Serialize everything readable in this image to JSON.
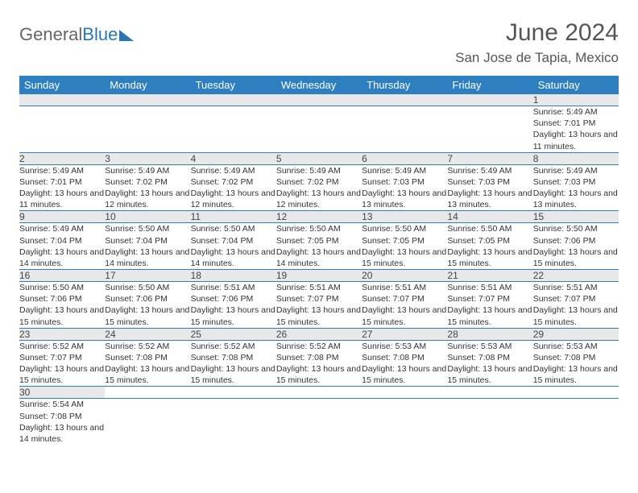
{
  "brand": {
    "part1": "General",
    "part2": "Blue"
  },
  "title": "June 2024",
  "location": "San Jose de Tapia, Mexico",
  "colors": {
    "header_bg": "#2d7fbf",
    "header_text": "#ffffff",
    "daynum_bg": "#e8e8e8",
    "row_divider": "#2d7fbf",
    "brand_blue": "#2878b8",
    "brand_gray": "#666666",
    "page_bg": "#ffffff"
  },
  "typography": {
    "title_fontsize": 30,
    "location_fontsize": 17,
    "dayhead_fontsize": 13,
    "cell_fontsize": 10.5
  },
  "day_headers": [
    "Sunday",
    "Monday",
    "Tuesday",
    "Wednesday",
    "Thursday",
    "Friday",
    "Saturday"
  ],
  "weeks": [
    [
      null,
      null,
      null,
      null,
      null,
      null,
      {
        "n": "1",
        "sunrise": "5:49 AM",
        "sunset": "7:01 PM",
        "daylight": "13 hours and 11 minutes."
      }
    ],
    [
      {
        "n": "2",
        "sunrise": "5:49 AM",
        "sunset": "7:01 PM",
        "daylight": "13 hours and 11 minutes."
      },
      {
        "n": "3",
        "sunrise": "5:49 AM",
        "sunset": "7:02 PM",
        "daylight": "13 hours and 12 minutes."
      },
      {
        "n": "4",
        "sunrise": "5:49 AM",
        "sunset": "7:02 PM",
        "daylight": "13 hours and 12 minutes."
      },
      {
        "n": "5",
        "sunrise": "5:49 AM",
        "sunset": "7:02 PM",
        "daylight": "13 hours and 12 minutes."
      },
      {
        "n": "6",
        "sunrise": "5:49 AM",
        "sunset": "7:03 PM",
        "daylight": "13 hours and 13 minutes."
      },
      {
        "n": "7",
        "sunrise": "5:49 AM",
        "sunset": "7:03 PM",
        "daylight": "13 hours and 13 minutes."
      },
      {
        "n": "8",
        "sunrise": "5:49 AM",
        "sunset": "7:03 PM",
        "daylight": "13 hours and 13 minutes."
      }
    ],
    [
      {
        "n": "9",
        "sunrise": "5:49 AM",
        "sunset": "7:04 PM",
        "daylight": "13 hours and 14 minutes."
      },
      {
        "n": "10",
        "sunrise": "5:50 AM",
        "sunset": "7:04 PM",
        "daylight": "13 hours and 14 minutes."
      },
      {
        "n": "11",
        "sunrise": "5:50 AM",
        "sunset": "7:04 PM",
        "daylight": "13 hours and 14 minutes."
      },
      {
        "n": "12",
        "sunrise": "5:50 AM",
        "sunset": "7:05 PM",
        "daylight": "13 hours and 14 minutes."
      },
      {
        "n": "13",
        "sunrise": "5:50 AM",
        "sunset": "7:05 PM",
        "daylight": "13 hours and 15 minutes."
      },
      {
        "n": "14",
        "sunrise": "5:50 AM",
        "sunset": "7:05 PM",
        "daylight": "13 hours and 15 minutes."
      },
      {
        "n": "15",
        "sunrise": "5:50 AM",
        "sunset": "7:06 PM",
        "daylight": "13 hours and 15 minutes."
      }
    ],
    [
      {
        "n": "16",
        "sunrise": "5:50 AM",
        "sunset": "7:06 PM",
        "daylight": "13 hours and 15 minutes."
      },
      {
        "n": "17",
        "sunrise": "5:50 AM",
        "sunset": "7:06 PM",
        "daylight": "13 hours and 15 minutes."
      },
      {
        "n": "18",
        "sunrise": "5:51 AM",
        "sunset": "7:06 PM",
        "daylight": "13 hours and 15 minutes."
      },
      {
        "n": "19",
        "sunrise": "5:51 AM",
        "sunset": "7:07 PM",
        "daylight": "13 hours and 15 minutes."
      },
      {
        "n": "20",
        "sunrise": "5:51 AM",
        "sunset": "7:07 PM",
        "daylight": "13 hours and 15 minutes."
      },
      {
        "n": "21",
        "sunrise": "5:51 AM",
        "sunset": "7:07 PM",
        "daylight": "13 hours and 15 minutes."
      },
      {
        "n": "22",
        "sunrise": "5:51 AM",
        "sunset": "7:07 PM",
        "daylight": "13 hours and 15 minutes."
      }
    ],
    [
      {
        "n": "23",
        "sunrise": "5:52 AM",
        "sunset": "7:07 PM",
        "daylight": "13 hours and 15 minutes."
      },
      {
        "n": "24",
        "sunrise": "5:52 AM",
        "sunset": "7:08 PM",
        "daylight": "13 hours and 15 minutes."
      },
      {
        "n": "25",
        "sunrise": "5:52 AM",
        "sunset": "7:08 PM",
        "daylight": "13 hours and 15 minutes."
      },
      {
        "n": "26",
        "sunrise": "5:52 AM",
        "sunset": "7:08 PM",
        "daylight": "13 hours and 15 minutes."
      },
      {
        "n": "27",
        "sunrise": "5:53 AM",
        "sunset": "7:08 PM",
        "daylight": "13 hours and 15 minutes."
      },
      {
        "n": "28",
        "sunrise": "5:53 AM",
        "sunset": "7:08 PM",
        "daylight": "13 hours and 15 minutes."
      },
      {
        "n": "29",
        "sunrise": "5:53 AM",
        "sunset": "7:08 PM",
        "daylight": "13 hours and 15 minutes."
      }
    ],
    [
      {
        "n": "30",
        "sunrise": "5:54 AM",
        "sunset": "7:08 PM",
        "daylight": "13 hours and 14 minutes."
      },
      null,
      null,
      null,
      null,
      null,
      null
    ]
  ],
  "labels": {
    "sunrise": "Sunrise: ",
    "sunset": "Sunset: ",
    "daylight": "Daylight: "
  }
}
